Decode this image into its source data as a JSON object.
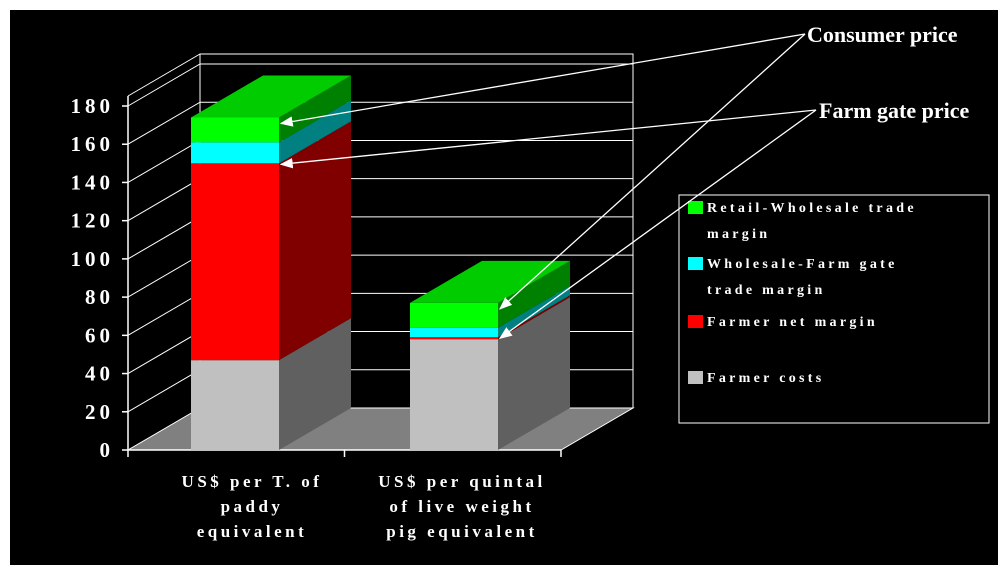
{
  "chart_data": {
    "type": "bar",
    "stacked": true,
    "three_d": true,
    "categories": [
      [
        "US$ per T. of",
        "paddy",
        "equivalent"
      ],
      [
        "US$ per quintal",
        "of live weight",
        "pig equivalent"
      ]
    ],
    "series": [
      {
        "name": "Farmer costs",
        "color": "#c0c0c0",
        "side_color": "#606060",
        "top_color": "#a0a0a0",
        "values": [
          47,
          58
        ]
      },
      {
        "name": "Farmer net margin",
        "color": "#ff0000",
        "side_color": "#800000",
        "top_color": "#c00000",
        "values": [
          103,
          1
        ]
      },
      {
        "name": "Wholesale-Farm gate trade margin",
        "color": "#00ffff",
        "side_color": "#008080",
        "top_color": "#00c0c0",
        "values": [
          11,
          5
        ]
      },
      {
        "name": "Retail-Wholesale trade margin",
        "color": "#00ff00",
        "side_color": "#008000",
        "top_color": "#00cc00",
        "values": [
          13,
          13
        ]
      }
    ],
    "legend": {
      "placement": "right",
      "entries": [
        {
          "lines": [
            "Retail-Wholesale trade",
            "margin"
          ],
          "color": "#00ff00"
        },
        {
          "lines": [
            "Wholesale-Farm gate",
            "trade margin"
          ],
          "color": "#00ffff"
        },
        {
          "lines": [
            "Farmer net margin"
          ],
          "color": "#ff0000"
        },
        {
          "lines": [
            "Farmer costs"
          ],
          "color": "#c0c0c0"
        }
      ]
    },
    "y_ticks": [
      "0",
      "20",
      "40",
      "60",
      "80",
      "100",
      "120",
      "140",
      "160",
      "180"
    ],
    "ylim": [
      0,
      180
    ],
    "grid": true,
    "annotations": [
      {
        "text": "Consumer price",
        "points_to": "top of each bar"
      },
      {
        "text": "Farm gate price",
        "points_to": "top of farmer net margin in each bar"
      }
    ]
  }
}
